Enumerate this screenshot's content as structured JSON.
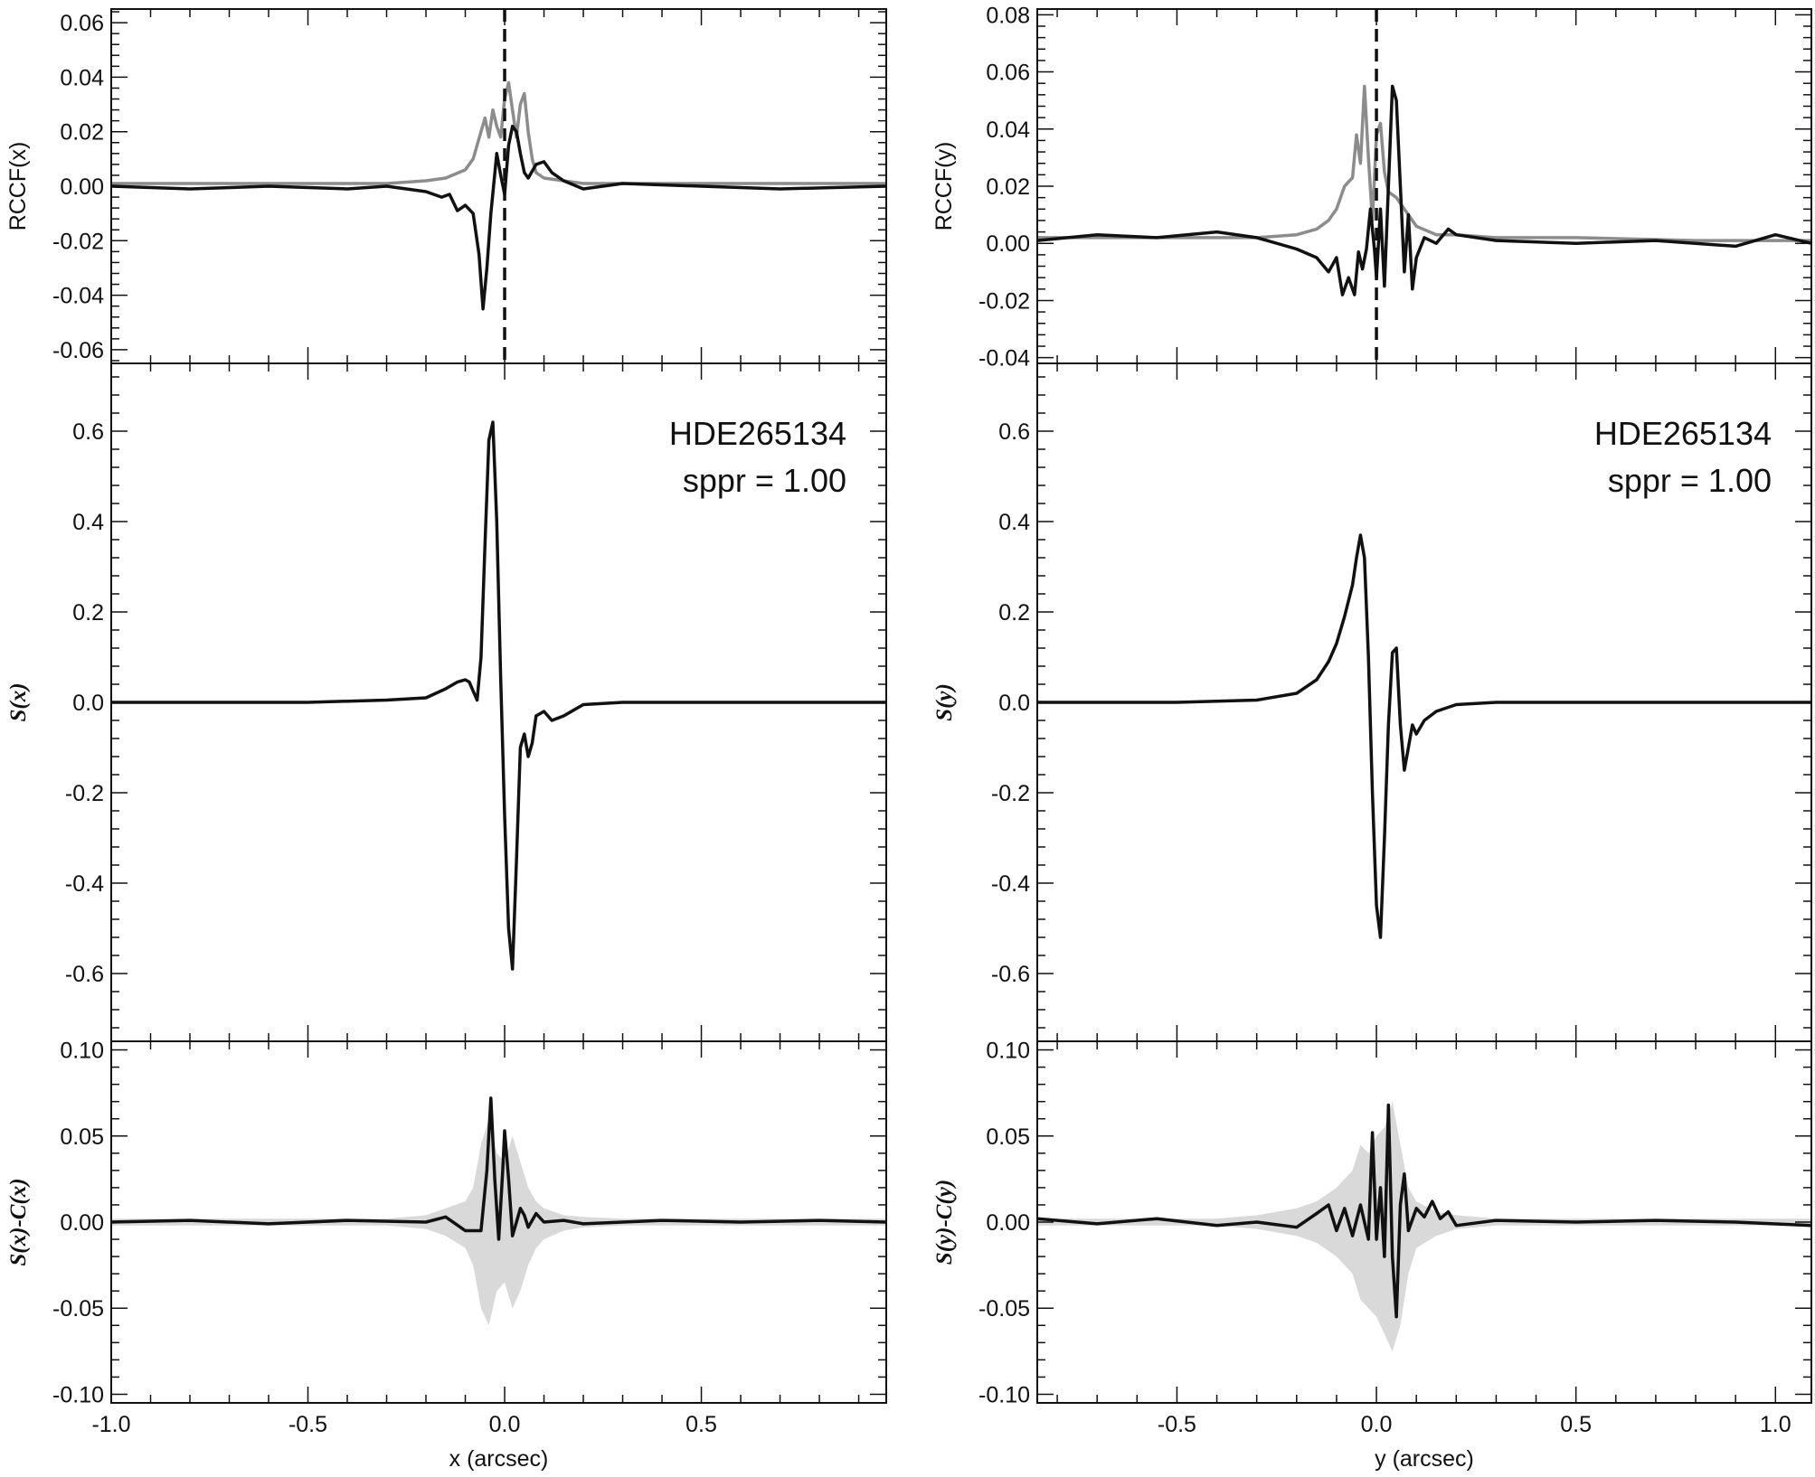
{
  "chart_data": [
    {
      "type": "line",
      "panel": "left-top",
      "ylabel": "RCCF(x)",
      "ylim": [
        -0.065,
        0.065
      ],
      "xlim": [
        -1.0,
        0.97
      ],
      "yticks": [
        -0.06,
        -0.04,
        -0.02,
        0.0,
        0.02,
        0.04,
        0.06
      ],
      "ytick_labels": [
        "-0.06",
        "-0.04",
        "-0.02",
        "0.00",
        "0.02",
        "0.04",
        "0.06"
      ],
      "vline_x": 0.0,
      "series": [
        {
          "color": "#8c8c8c",
          "x": [
            -1.0,
            -0.5,
            -0.3,
            -0.2,
            -0.15,
            -0.1,
            -0.08,
            -0.06,
            -0.05,
            -0.04,
            -0.03,
            -0.02,
            -0.01,
            0.0,
            0.01,
            0.02,
            0.03,
            0.04,
            0.05,
            0.06,
            0.07,
            0.08,
            0.1,
            0.15,
            0.2,
            0.3,
            0.5,
            0.97
          ],
          "y": [
            0.001,
            0.001,
            0.001,
            0.002,
            0.003,
            0.006,
            0.01,
            0.02,
            0.025,
            0.018,
            0.028,
            0.022,
            0.018,
            0.032,
            0.038,
            0.028,
            0.018,
            0.03,
            0.034,
            0.02,
            0.01,
            0.005,
            0.003,
            0.002,
            0.001,
            0.001,
            0.001,
            0.001
          ]
        },
        {
          "color": "#111111",
          "x": [
            -1.0,
            -0.8,
            -0.6,
            -0.4,
            -0.3,
            -0.2,
            -0.16,
            -0.14,
            -0.12,
            -0.1,
            -0.08,
            -0.065,
            -0.055,
            -0.045,
            -0.035,
            -0.02,
            -0.01,
            0.0,
            0.01,
            0.02,
            0.03,
            0.04,
            0.05,
            0.06,
            0.08,
            0.1,
            0.12,
            0.15,
            0.2,
            0.3,
            0.5,
            0.7,
            0.97
          ],
          "y": [
            0.0,
            -0.001,
            0.0,
            -0.001,
            0.0,
            -0.002,
            -0.004,
            -0.003,
            -0.009,
            -0.007,
            -0.01,
            -0.025,
            -0.045,
            -0.03,
            -0.01,
            0.012,
            0.004,
            -0.003,
            0.015,
            0.022,
            0.02,
            0.012,
            0.005,
            0.003,
            0.008,
            0.009,
            0.005,
            0.002,
            -0.001,
            0.001,
            0.0,
            -0.001,
            0.0
          ]
        }
      ]
    },
    {
      "type": "line",
      "panel": "right-top",
      "ylabel": "RCCF(y)",
      "ylim": [
        -0.042,
        0.082
      ],
      "xlim": [
        -0.85,
        1.09
      ],
      "yticks": [
        -0.04,
        -0.02,
        0.0,
        0.02,
        0.04,
        0.06,
        0.08
      ],
      "ytick_labels": [
        "-0.04",
        "-0.02",
        "0.00",
        "0.02",
        "0.04",
        "0.06",
        "0.08"
      ],
      "vline_x": 0.0,
      "series": [
        {
          "color": "#8c8c8c",
          "x": [
            -0.85,
            -0.5,
            -0.3,
            -0.2,
            -0.15,
            -0.12,
            -0.1,
            -0.08,
            -0.06,
            -0.05,
            -0.04,
            -0.03,
            -0.02,
            -0.01,
            0.0,
            0.01,
            0.02,
            0.03,
            0.05,
            0.07,
            0.1,
            0.15,
            0.2,
            0.3,
            0.5,
            0.8,
            1.09
          ],
          "y": [
            0.002,
            0.002,
            0.002,
            0.003,
            0.005,
            0.008,
            0.012,
            0.02,
            0.023,
            0.038,
            0.028,
            0.055,
            0.03,
            0.008,
            0.038,
            0.042,
            0.025,
            0.018,
            0.016,
            0.012,
            0.006,
            0.003,
            0.003,
            0.002,
            0.002,
            0.001,
            0.001
          ]
        },
        {
          "color": "#111111",
          "x": [
            -0.85,
            -0.7,
            -0.55,
            -0.4,
            -0.3,
            -0.2,
            -0.15,
            -0.12,
            -0.1,
            -0.085,
            -0.07,
            -0.055,
            -0.045,
            -0.035,
            -0.025,
            -0.015,
            -0.005,
            0.0,
            0.01,
            0.02,
            0.03,
            0.04,
            0.05,
            0.06,
            0.07,
            0.08,
            0.09,
            0.1,
            0.12,
            0.15,
            0.18,
            0.2,
            0.3,
            0.5,
            0.7,
            0.9,
            1.0,
            1.09
          ],
          "y": [
            0.001,
            0.003,
            0.002,
            0.004,
            0.002,
            -0.002,
            -0.005,
            -0.01,
            -0.005,
            -0.018,
            -0.012,
            -0.018,
            -0.003,
            -0.009,
            -0.002,
            0.012,
            -0.002,
            -0.012,
            0.012,
            -0.015,
            0.02,
            0.055,
            0.05,
            0.02,
            -0.01,
            0.01,
            -0.016,
            -0.005,
            0.002,
            0.0,
            0.005,
            0.003,
            0.001,
            0.0,
            0.001,
            -0.001,
            0.003,
            0.0
          ]
        }
      ]
    },
    {
      "type": "line",
      "panel": "left-middle",
      "ylabel": "S(x)",
      "ylim": [
        -0.75,
        0.75
      ],
      "xlim": [
        -1.0,
        0.97
      ],
      "yticks": [
        -0.6,
        -0.4,
        -0.2,
        0.0,
        0.2,
        0.4,
        0.6
      ],
      "ytick_labels": [
        "-0.6",
        "-0.4",
        "-0.2",
        "0.0",
        "0.2",
        "0.4",
        "0.6"
      ],
      "annotations": [
        "HDE265134",
        "sppr = 1.00"
      ],
      "series": [
        {
          "color": "#111111",
          "x": [
            -1.0,
            -0.5,
            -0.3,
            -0.2,
            -0.15,
            -0.12,
            -0.1,
            -0.09,
            -0.08,
            -0.07,
            -0.06,
            -0.05,
            -0.04,
            -0.03,
            -0.02,
            -0.01,
            0.0,
            0.01,
            0.02,
            0.03,
            0.04,
            0.05,
            0.06,
            0.07,
            0.08,
            0.1,
            0.12,
            0.15,
            0.2,
            0.3,
            0.5,
            0.97
          ],
          "y": [
            0.0,
            0.0,
            0.005,
            0.01,
            0.03,
            0.045,
            0.05,
            0.045,
            0.025,
            0.005,
            0.1,
            0.35,
            0.58,
            0.62,
            0.4,
            0.05,
            -0.25,
            -0.5,
            -0.59,
            -0.35,
            -0.1,
            -0.07,
            -0.12,
            -0.09,
            -0.03,
            -0.02,
            -0.04,
            -0.03,
            -0.005,
            0.0,
            0.0,
            0.0
          ]
        }
      ]
    },
    {
      "type": "line",
      "panel": "right-middle",
      "ylabel": "S(y)",
      "ylim": [
        -0.75,
        0.75
      ],
      "xlim": [
        -0.85,
        1.09
      ],
      "yticks": [
        -0.6,
        -0.4,
        -0.2,
        0.0,
        0.2,
        0.4,
        0.6
      ],
      "ytick_labels": [
        "-0.6",
        "-0.4",
        "-0.2",
        "0.0",
        "0.2",
        "0.4",
        "0.6"
      ],
      "annotations": [
        "HDE265134",
        "sppr = 1.00"
      ],
      "series": [
        {
          "color": "#111111",
          "x": [
            -0.85,
            -0.5,
            -0.3,
            -0.2,
            -0.15,
            -0.12,
            -0.1,
            -0.08,
            -0.06,
            -0.05,
            -0.04,
            -0.03,
            -0.02,
            -0.01,
            0.0,
            0.01,
            0.02,
            0.03,
            0.04,
            0.05,
            0.06,
            0.07,
            0.08,
            0.09,
            0.1,
            0.12,
            0.15,
            0.2,
            0.3,
            0.5,
            1.09
          ],
          "y": [
            0.0,
            0.0,
            0.005,
            0.02,
            0.05,
            0.09,
            0.13,
            0.19,
            0.26,
            0.32,
            0.37,
            0.32,
            0.1,
            -0.2,
            -0.45,
            -0.52,
            -0.3,
            -0.05,
            0.11,
            0.12,
            -0.05,
            -0.15,
            -0.1,
            -0.05,
            -0.07,
            -0.04,
            -0.02,
            -0.005,
            0.0,
            0.0,
            0.0
          ]
        }
      ]
    },
    {
      "type": "area",
      "panel": "left-bottom",
      "ylabel": "S(x)-C(x)",
      "xlabel": "x (arcsec)",
      "ylim": [
        -0.105,
        0.105
      ],
      "xlim": [
        -1.0,
        0.97
      ],
      "yticks": [
        -0.1,
        -0.05,
        0.0,
        0.05,
        0.1
      ],
      "ytick_labels": [
        "-0.10",
        "-0.05",
        "0.00",
        "0.05",
        "0.10"
      ],
      "xticks": [
        -1.0,
        -0.5,
        0.0,
        0.5
      ],
      "xtick_labels": [
        "-1.0",
        "-0.5",
        "0.0",
        "0.5"
      ],
      "band": {
        "color": "#d9d9d9",
        "x": [
          -1.0,
          -0.3,
          -0.2,
          -0.15,
          -0.1,
          -0.08,
          -0.06,
          -0.04,
          -0.02,
          0.0,
          0.02,
          0.04,
          0.06,
          0.08,
          0.1,
          0.15,
          0.2,
          0.3,
          0.97
        ],
        "upper": [
          0.002,
          0.002,
          0.004,
          0.008,
          0.012,
          0.02,
          0.045,
          0.06,
          0.04,
          0.035,
          0.05,
          0.035,
          0.02,
          0.012,
          0.008,
          0.004,
          0.003,
          0.002,
          0.002
        ],
        "lower": [
          -0.002,
          -0.002,
          -0.004,
          -0.008,
          -0.015,
          -0.025,
          -0.05,
          -0.06,
          -0.04,
          -0.035,
          -0.05,
          -0.04,
          -0.025,
          -0.015,
          -0.01,
          -0.005,
          -0.003,
          -0.002,
          -0.002
        ]
      },
      "series": [
        {
          "color": "#111111",
          "x": [
            -1.0,
            -0.8,
            -0.6,
            -0.4,
            -0.2,
            -0.15,
            -0.1,
            -0.06,
            -0.045,
            -0.035,
            -0.025,
            -0.015,
            -0.005,
            0.0,
            0.01,
            0.02,
            0.03,
            0.04,
            0.05,
            0.06,
            0.08,
            0.1,
            0.15,
            0.2,
            0.4,
            0.6,
            0.8,
            0.97
          ],
          "y": [
            0.0,
            0.001,
            -0.001,
            0.001,
            0.0,
            0.003,
            -0.005,
            -0.005,
            0.03,
            0.072,
            0.025,
            -0.01,
            0.03,
            0.053,
            0.025,
            -0.008,
            0.0,
            0.008,
            0.004,
            -0.003,
            0.005,
            0.0,
            0.001,
            -0.001,
            0.001,
            0.0,
            0.001,
            0.0
          ]
        }
      ]
    },
    {
      "type": "area",
      "panel": "right-bottom",
      "ylabel": "S(y)-C(y)",
      "xlabel": "y (arcsec)",
      "ylim": [
        -0.105,
        0.105
      ],
      "xlim": [
        -0.85,
        1.09
      ],
      "yticks": [
        -0.1,
        -0.05,
        0.0,
        0.05,
        0.1
      ],
      "ytick_labels": [
        "-0.10",
        "-0.05",
        "0.00",
        "0.05",
        "0.10"
      ],
      "xticks": [
        -0.5,
        0.0,
        0.5,
        1.0
      ],
      "xtick_labels": [
        "-0.5",
        "0.0",
        "0.5",
        "1.0"
      ],
      "band": {
        "color": "#d9d9d9",
        "x": [
          -0.85,
          -0.4,
          -0.3,
          -0.2,
          -0.15,
          -0.1,
          -0.06,
          -0.04,
          -0.02,
          0.0,
          0.02,
          0.04,
          0.06,
          0.08,
          0.1,
          0.15,
          0.2,
          0.3,
          1.09
        ],
        "upper": [
          0.002,
          0.002,
          0.004,
          0.008,
          0.012,
          0.02,
          0.03,
          0.045,
          0.04,
          0.05,
          0.055,
          0.07,
          0.045,
          0.02,
          0.012,
          0.006,
          0.004,
          0.002,
          0.002
        ],
        "lower": [
          -0.002,
          -0.002,
          -0.004,
          -0.008,
          -0.012,
          -0.02,
          -0.03,
          -0.045,
          -0.05,
          -0.055,
          -0.065,
          -0.075,
          -0.06,
          -0.03,
          -0.015,
          -0.008,
          -0.004,
          -0.002,
          -0.002
        ]
      },
      "series": [
        {
          "color": "#111111",
          "x": [
            -0.85,
            -0.7,
            -0.55,
            -0.4,
            -0.3,
            -0.2,
            -0.15,
            -0.12,
            -0.1,
            -0.08,
            -0.06,
            -0.04,
            -0.02,
            -0.01,
            0.0,
            0.01,
            0.02,
            0.03,
            0.04,
            0.05,
            0.06,
            0.07,
            0.08,
            0.1,
            0.12,
            0.14,
            0.16,
            0.18,
            0.2,
            0.3,
            0.5,
            0.7,
            0.9,
            1.09
          ],
          "y": [
            0.002,
            -0.001,
            0.002,
            -0.002,
            0.0,
            -0.003,
            0.005,
            0.01,
            -0.005,
            0.008,
            -0.008,
            0.01,
            -0.01,
            0.052,
            -0.01,
            0.02,
            -0.02,
            0.068,
            -0.02,
            -0.055,
            0.01,
            0.028,
            -0.005,
            0.008,
            0.003,
            0.012,
            0.002,
            0.006,
            -0.002,
            0.001,
            0.0,
            0.001,
            0.0,
            -0.002
          ]
        }
      ]
    }
  ]
}
